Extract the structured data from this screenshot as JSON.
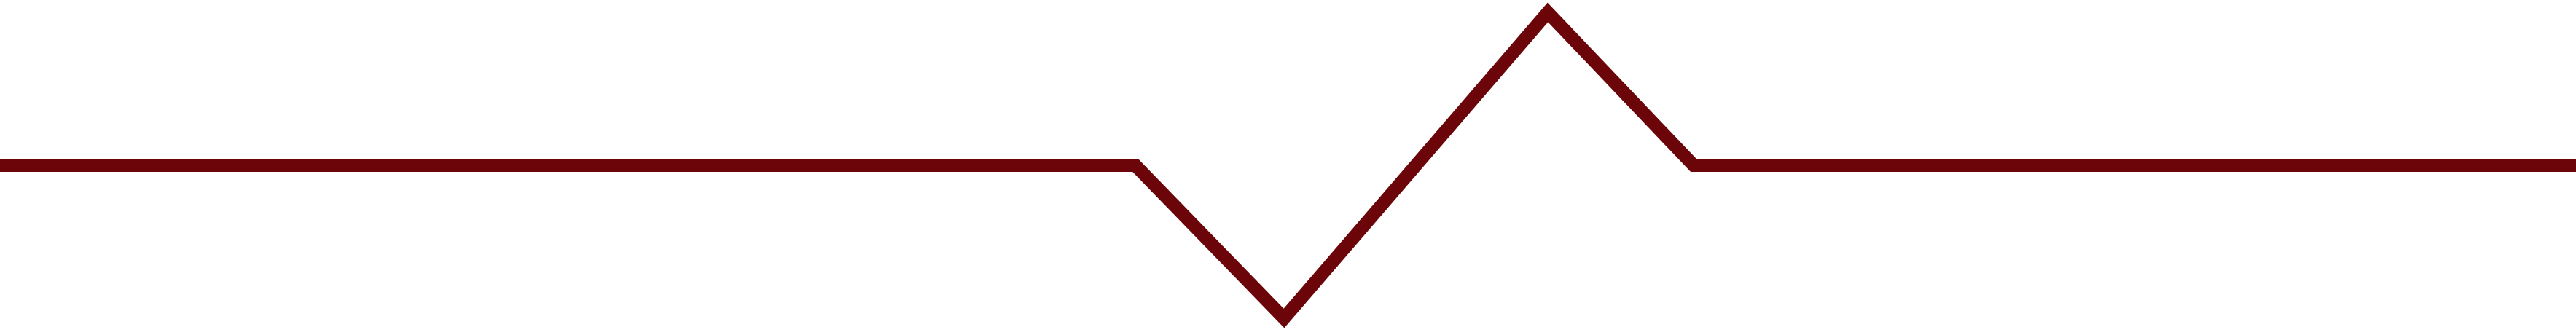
{
  "divider": {
    "icon": "heartbeat-line-icon",
    "stroke_color": "#6b0509",
    "background_color": "#ffffff"
  }
}
